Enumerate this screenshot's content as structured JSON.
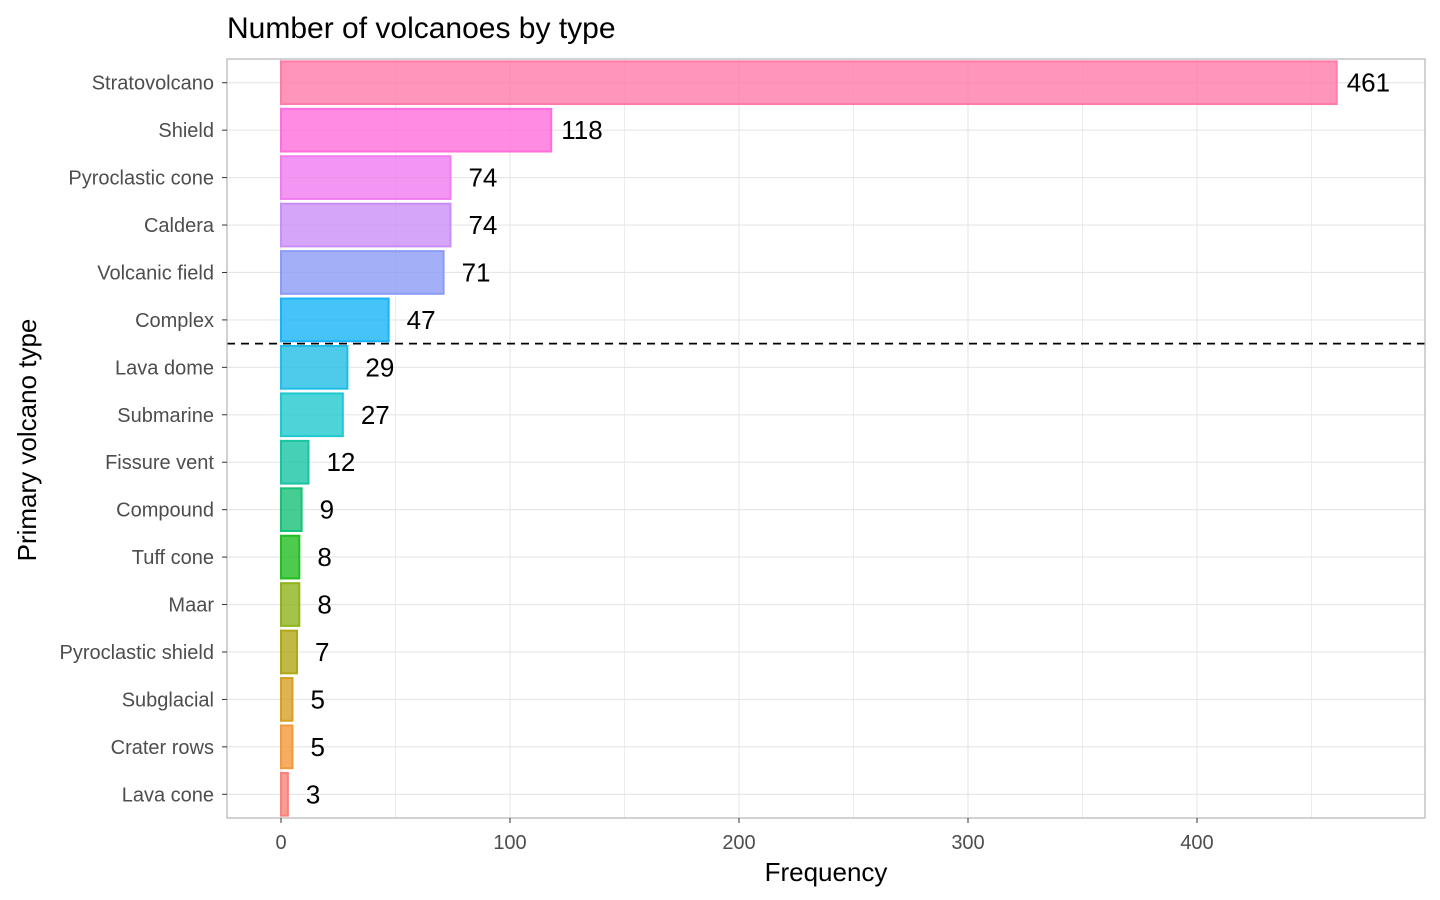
{
  "chart_data": {
    "type": "bar",
    "orientation": "horizontal",
    "title": "Number of volcanoes by type",
    "xlabel": "Frequency",
    "ylabel": "Primary volcano type",
    "xlim": [
      -23,
      500
    ],
    "xticks": [
      0,
      100,
      200,
      300,
      400
    ],
    "grid": true,
    "legend": "none",
    "reference_line": {
      "style": "dashed",
      "between": [
        "Complex",
        "Lava dome"
      ]
    },
    "categories": [
      "Stratovolcano",
      "Shield",
      "Pyroclastic cone",
      "Caldera",
      "Volcanic field",
      "Complex",
      "Lava dome",
      "Submarine",
      "Fissure vent",
      "Compound",
      "Tuff cone",
      "Maar",
      "Pyroclastic shield",
      "Subglacial",
      "Crater rows",
      "Lava cone"
    ],
    "values": [
      461,
      118,
      74,
      74,
      71,
      47,
      29,
      27,
      12,
      9,
      8,
      8,
      7,
      5,
      5,
      3
    ],
    "colors": [
      "#ff7baa",
      "#ff6fdb",
      "#f07cf0",
      "#c98ff8",
      "#8c9cf5",
      "#18b4f7",
      "#22bde6",
      "#20c9d0",
      "#18c4a2",
      "#18c178",
      "#22bd22",
      "#8fb41b",
      "#b0a718",
      "#d6a025",
      "#f39a3a",
      "#f88379"
    ]
  }
}
